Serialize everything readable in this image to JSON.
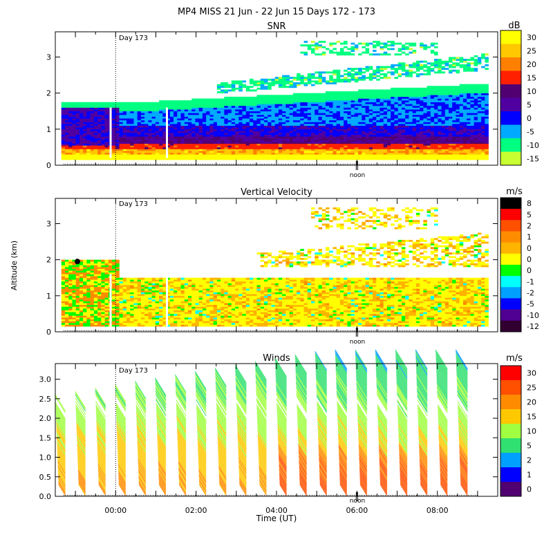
{
  "figure_title": "MP4 MISS  21 Jun - 22 Jun 15 Days 172 - 173",
  "chart_data": [
    {
      "type": "heatmap",
      "title": "SNR",
      "units": "dB",
      "xlabel": "",
      "ylabel": "",
      "ylim": [
        0,
        3.7
      ],
      "yticks": [
        0,
        1,
        2,
        3
      ],
      "day_marker": {
        "label": "Day 173",
        "time_h": 0.0
      },
      "noon_marker": {
        "label": "noon",
        "time_h": 6.0
      },
      "colorbar": {
        "labels": [
          "30",
          "25",
          "20",
          "15",
          "10",
          "5",
          "0",
          "-5",
          "-10",
          "-15"
        ],
        "colors": [
          "#ffff00",
          "#ffc800",
          "#ff8000",
          "#ff2000",
          "#500070",
          "#5000a0",
          "#0000ff",
          "#00aaff",
          "#00ff80",
          "#c8ff30"
        ]
      }
    },
    {
      "type": "heatmap",
      "title": "Vertical Velocity",
      "units": "m/s",
      "xlabel": "",
      "ylabel": "Altitude (km)",
      "ylim": [
        0,
        3.7
      ],
      "yticks": [
        0,
        1,
        2,
        3
      ],
      "day_marker": {
        "label": "Day 173",
        "time_h": 0.0
      },
      "noon_marker": {
        "label": "noon",
        "time_h": 6.0
      },
      "colorbar": {
        "labels": [
          "8",
          "5",
          "2",
          "1",
          "0",
          "0",
          "0",
          "-1",
          "-2",
          "-5",
          "-10",
          "-12"
        ],
        "colors": [
          "#000000",
          "#ff0000",
          "#ff5000",
          "#ff8c00",
          "#ffb400",
          "#ffff00",
          "#00ff00",
          "#00ffff",
          "#00a0ff",
          "#0000ff",
          "#500090",
          "#300030"
        ]
      }
    },
    {
      "type": "barbs",
      "title": "Winds",
      "units": "m/s",
      "xlabel": "Time (UT)",
      "ylabel": "",
      "ylim": [
        0,
        3.4
      ],
      "yticks": [
        0.0,
        0.5,
        1.0,
        1.5,
        2.0,
        2.5,
        3.0
      ],
      "ytick_labels": [
        "0.0",
        "0.5",
        "1.0",
        "1.5",
        "2.0",
        "2.5",
        "3.0"
      ],
      "xticks": [
        0,
        2,
        4,
        6,
        8
      ],
      "xtick_labels": [
        "00:00",
        "02:00",
        "04:00",
        "06:00",
        "08:00"
      ],
      "xlim": [
        -1.5,
        9.5
      ],
      "day_marker": {
        "label": "Day 173",
        "time_h": 0.0
      },
      "noon_marker": {
        "label": "noon",
        "time_h": 6.0
      },
      "profile_times_h": [
        -1.25,
        -0.75,
        -0.25,
        0.25,
        0.75,
        1.25,
        1.75,
        2.25,
        2.75,
        3.25,
        3.75,
        4.25,
        4.75,
        5.25,
        5.75,
        6.25,
        6.75,
        7.25,
        7.75,
        8.25,
        8.75
      ],
      "colorbar": {
        "labels": [
          "30",
          "25",
          "20",
          "15",
          "10",
          "5",
          "2",
          "1",
          "0"
        ],
        "colors": [
          "#ff0000",
          "#ff5000",
          "#ff8c00",
          "#ffc800",
          "#a0ff40",
          "#30e070",
          "#00a0ff",
          "#0000ff",
          "#500070"
        ]
      }
    }
  ]
}
